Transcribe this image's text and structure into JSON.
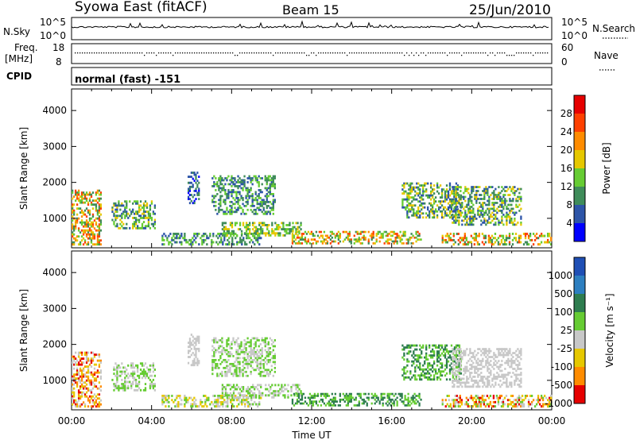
{
  "header": {
    "title": "Syowa East (fitACF)",
    "beam": "Beam 15",
    "date": "25/Jun/2010"
  },
  "top_panel": {
    "left_label": "N.Sky",
    "right_label": "N.Search",
    "left_ticks": [
      "10^5",
      "10^0"
    ],
    "right_ticks": [
      "10^5",
      "10^0"
    ]
  },
  "freq_panel": {
    "left_label_line1": "Freq.",
    "left_label_line2": "[MHz]",
    "left_ticks": [
      "18",
      "8"
    ],
    "right_label": "Nave",
    "right_ticks": [
      "60",
      "0"
    ]
  },
  "cpid": {
    "label": "CPID",
    "value": "normal (fast) -151"
  },
  "chart_data": [
    {
      "type": "heatmap",
      "name": "power",
      "ylabel": "Slant Range [km]",
      "yticks": [
        "1000",
        "2000",
        "3000",
        "4000"
      ],
      "ylim": [
        180,
        4600
      ],
      "xlim": [
        0,
        24
      ],
      "xticks": [
        "00:00",
        "04:00",
        "08:00",
        "12:00",
        "16:00",
        "20:00",
        "00:00"
      ],
      "colorbar": {
        "label": "Power [dB]",
        "ticks": [
          "4",
          "8",
          "12",
          "16",
          "20",
          "24",
          "28"
        ],
        "colors": [
          "#0000ff",
          "#2d55a8",
          "#3f8c5a",
          "#66cc33",
          "#e6c800",
          "#ff8c00",
          "#ff4000",
          "#e60000"
        ]
      },
      "bands": [
        {
          "t0": 0.0,
          "t1": 1.5,
          "r0": 250,
          "r1": 1800,
          "level": [
            2,
            6
          ]
        },
        {
          "t0": 2.0,
          "t1": 4.2,
          "r0": 700,
          "r1": 1500,
          "level": [
            1,
            4
          ]
        },
        {
          "t0": 4.5,
          "t1": 9.5,
          "r0": 250,
          "r1": 600,
          "level": [
            1,
            3
          ]
        },
        {
          "t0": 7.0,
          "t1": 10.2,
          "r0": 1100,
          "r1": 2200,
          "level": [
            1,
            3
          ]
        },
        {
          "t0": 7.5,
          "t1": 11.5,
          "r0": 500,
          "r1": 900,
          "level": [
            2,
            4
          ]
        },
        {
          "t0": 11.0,
          "t1": 17.5,
          "r0": 280,
          "r1": 650,
          "level": [
            2,
            6
          ]
        },
        {
          "t0": 16.5,
          "t1": 19.5,
          "r0": 1000,
          "r1": 2000,
          "level": [
            1,
            4
          ]
        },
        {
          "t0": 19.0,
          "t1": 22.5,
          "r0": 800,
          "r1": 1900,
          "level": [
            1,
            4
          ]
        },
        {
          "t0": 18.5,
          "t1": 24.0,
          "r0": 250,
          "r1": 600,
          "level": [
            2,
            6
          ]
        },
        {
          "t0": 5.8,
          "t1": 6.4,
          "r0": 1400,
          "r1": 2300,
          "level": [
            0,
            2
          ]
        }
      ]
    },
    {
      "type": "heatmap",
      "name": "velocity",
      "ylabel": "Slant Range [km]",
      "yticks": [
        "1000",
        "2000",
        "3000",
        "4000"
      ],
      "ylim": [
        180,
        4600
      ],
      "xlim": [
        0,
        24
      ],
      "xticks": [
        "00:00",
        "04:00",
        "08:00",
        "12:00",
        "16:00",
        "20:00",
        "00:00"
      ],
      "xlabel": "Time UT",
      "colorbar": {
        "label": "Velocity [m s⁻¹]",
        "ticks": [
          "1000",
          "500",
          "100",
          "25",
          "-25",
          "-100",
          "-500",
          "-1000"
        ],
        "colors": [
          "#1f4fb5",
          "#2d7fc0",
          "#2e7d4f",
          "#66cc33",
          "#c8c8c8",
          "#e6c800",
          "#ff8c00",
          "#e60000"
        ]
      },
      "bands": [
        {
          "t0": 0.0,
          "t1": 1.5,
          "r0": 250,
          "r1": 1800,
          "level": [
            4,
            7
          ]
        },
        {
          "t0": 2.0,
          "t1": 4.2,
          "r0": 700,
          "r1": 1500,
          "level": [
            3,
            4
          ]
        },
        {
          "t0": 4.5,
          "t1": 9.5,
          "r0": 250,
          "r1": 600,
          "level": [
            3,
            5
          ]
        },
        {
          "t0": 7.0,
          "t1": 10.2,
          "r0": 1100,
          "r1": 2200,
          "level": [
            3,
            4
          ]
        },
        {
          "t0": 7.5,
          "t1": 11.5,
          "r0": 500,
          "r1": 900,
          "level": [
            3,
            4
          ]
        },
        {
          "t0": 11.0,
          "t1": 17.5,
          "r0": 280,
          "r1": 650,
          "level": [
            2,
            3
          ]
        },
        {
          "t0": 16.5,
          "t1": 19.5,
          "r0": 1000,
          "r1": 2000,
          "level": [
            2,
            3
          ]
        },
        {
          "t0": 19.0,
          "t1": 22.5,
          "r0": 800,
          "r1": 1900,
          "level": [
            4,
            4
          ]
        },
        {
          "t0": 18.5,
          "t1": 24.0,
          "r0": 250,
          "r1": 600,
          "level": [
            3,
            7
          ]
        },
        {
          "t0": 5.8,
          "t1": 6.4,
          "r0": 1400,
          "r1": 2300,
          "level": [
            4,
            4
          ]
        }
      ]
    }
  ]
}
